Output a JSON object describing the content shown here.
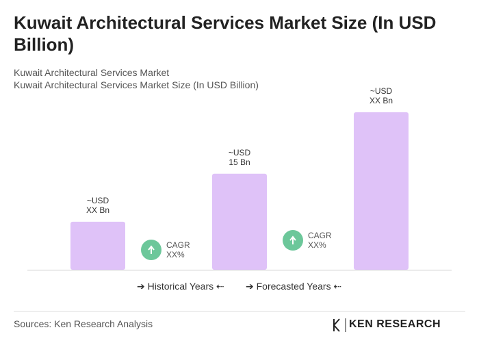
{
  "chart_data": {
    "type": "bar",
    "title": "Kuwait Architectural Services Market Size (In USD Billion)",
    "subtitle": [
      "Kuwait Architectural Services Market",
      "Kuwait Architectural Services Market Size (In USD Billion)"
    ],
    "categories": [
      null,
      null,
      null
    ],
    "values": [
      7.5,
      15,
      24.6
    ],
    "value_labels": [
      "~USD\nXX Bn",
      "~USD\n15 Bn",
      "~USD\nXX Bn"
    ],
    "color": "#dfc2f8",
    "annotations": [
      "CAGR\nXX%",
      "CAGR\nXX%"
    ],
    "annotation_color": "#6cc79a",
    "period_labels": [
      "Historical Years",
      "Forecasted Years"
    ],
    "source": "Sources: Ken Research Analysis",
    "logo": "KEN RESEARCH"
  }
}
